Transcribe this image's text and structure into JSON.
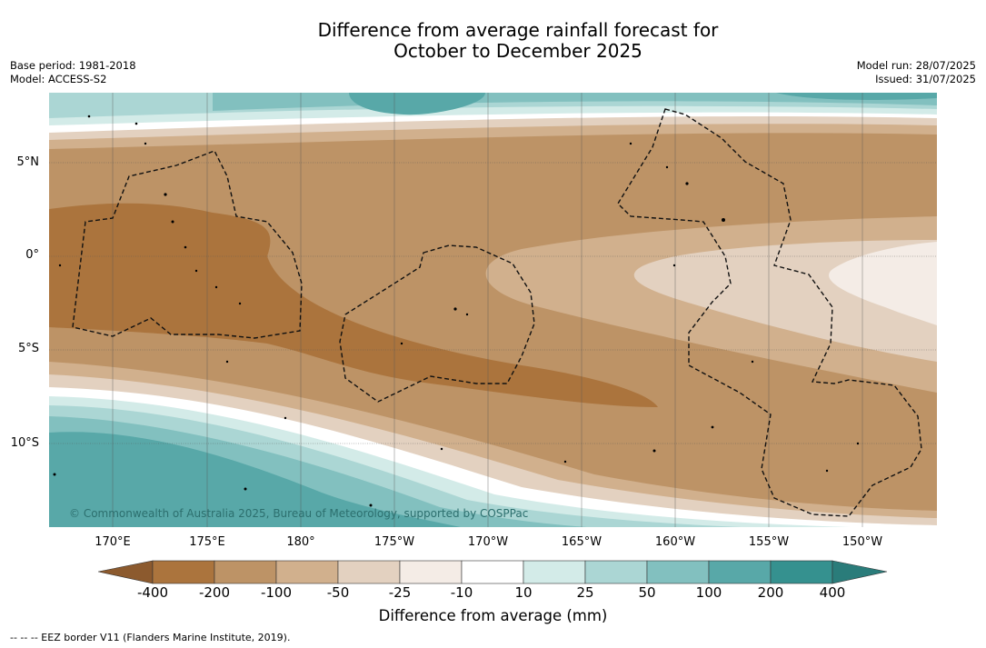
{
  "title_line1": "Difference from average rainfall forecast for",
  "title_line2": "October to December 2025",
  "meta_left": [
    "Base period: 1981-2018",
    "Model: ACCESS-S2"
  ],
  "meta_right": [
    "Model run: 28/07/2025",
    "Issued: 31/07/2025"
  ],
  "lat_labels": [
    "5°N",
    "0°",
    "5°S",
    "10°S"
  ],
  "lon_labels": [
    "170°E",
    "175°E",
    "180°",
    "175°W",
    "170°W",
    "165°W",
    "160°W",
    "155°W",
    "150°W"
  ],
  "copyright": "© Commonwealth of Australia 2025, Bureau of Meteorology, supported by COSPPac",
  "colorbar": {
    "ticks": [
      "-400",
      "-200",
      "-100",
      "-50",
      "-25",
      "-10",
      "10",
      "25",
      "50",
      "100",
      "200",
      "400"
    ],
    "colors": [
      "#8c5a2e",
      "#ab743d",
      "#bd9366",
      "#d1b08d",
      "#e3d1c0",
      "#f4ece6",
      "#ffffff",
      "#d3ebe8",
      "#abd6d4",
      "#82c0bf",
      "#58a8a8",
      "#35918f",
      "#2a7c7a"
    ],
    "label": "Difference from average (mm)"
  },
  "footnote": "--  --  -- EEZ border V11 (Flanders Marine Institute, 2019)."
}
